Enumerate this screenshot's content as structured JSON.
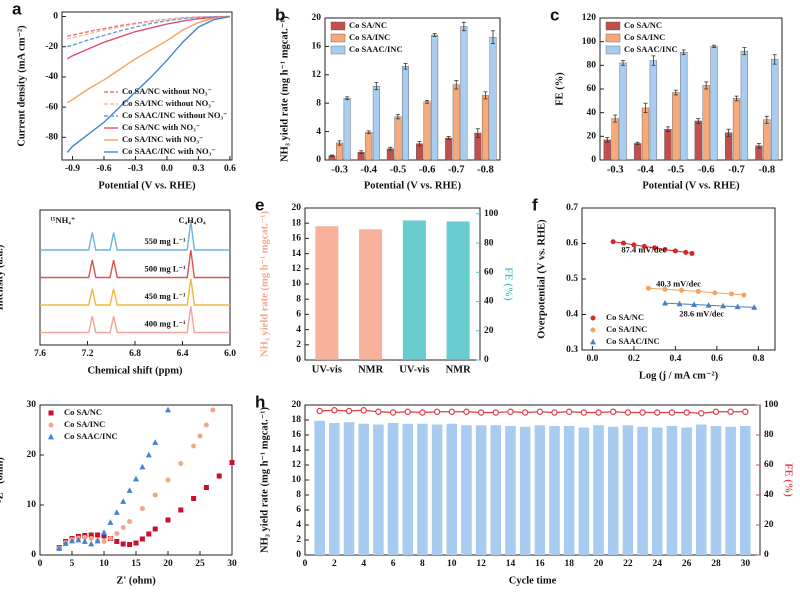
{
  "chart_data": [
    {
      "type": "line",
      "label": "a",
      "x_label": "Potential (V vs. RHE)",
      "y_label": "Current density (mA cm⁻²)",
      "xlim": [
        -1.0,
        0.62
      ],
      "xticks": [
        -0.9,
        -0.6,
        -0.3,
        {
          "value": 0,
          "label": "0.0"
        },
        0.3,
        0.6
      ],
      "ylim": [
        -95,
        3
      ],
      "yticks": [
        -80,
        -60,
        -40,
        -20,
        0
      ],
      "legend": "lower right",
      "x": [
        -0.95,
        -0.9,
        -0.75,
        -0.6,
        -0.45,
        -0.3,
        -0.15,
        0,
        0.15,
        0.3,
        0.45,
        0.6
      ],
      "series": [
        {
          "name": "Co SA/NC without NO₃⁻",
          "color": "#e8708a",
          "dash": true,
          "values": [
            -13,
            -12.3,
            -10,
            -8,
            -6,
            -4.5,
            -3,
            -1.8,
            -0.8,
            -0.3,
            -0.1,
            0
          ]
        },
        {
          "name": "Co SA/INC without NO₃⁻",
          "color": "#f5c09a",
          "dash": true,
          "values": [
            -15,
            -14,
            -11.5,
            -9,
            -7,
            -5,
            -3.4,
            -2,
            -1,
            -0.4,
            -0.1,
            0
          ]
        },
        {
          "name": "Co SAAC/INC without NO₃⁻",
          "color": "#6a9be0",
          "dash": true,
          "values": [
            -20,
            -19,
            -15.5,
            -12.5,
            -9.5,
            -7,
            -4.6,
            -2.8,
            -1.4,
            -0.6,
            -0.2,
            0
          ]
        },
        {
          "name": "Co SA/NC with NO₃⁻",
          "color": "#e0506e",
          "dash": false,
          "values": [
            -28,
            -26,
            -21.5,
            -17,
            -13.5,
            -10,
            -7.5,
            -5,
            -3,
            -1.5,
            -0.5,
            0
          ]
        },
        {
          "name": "Co SA/INC with NO₃⁻",
          "color": "#f4a460",
          "dash": false,
          "values": [
            -57,
            -55,
            -48,
            -42,
            -35,
            -28,
            -22,
            -16,
            -9,
            -4,
            -1,
            0
          ]
        },
        {
          "name": "Co SAAC/INC with NO₃⁻",
          "color": "#3f83d6",
          "dash": false,
          "values": [
            -90,
            -86,
            -78,
            -70,
            -60,
            -50,
            -40,
            -29,
            -17,
            -7,
            -2,
            0
          ]
        }
      ]
    },
    {
      "type": "bar",
      "label": "b",
      "x_label": "Potential (V vs. RHE)",
      "y_label": "NH₃ yield rate (mg h⁻¹ mgcat.⁻¹)",
      "categories": [
        "-0.3",
        "-0.4",
        "-0.5",
        "-0.6",
        "-0.7",
        "-0.8"
      ],
      "ylim": [
        0,
        20
      ],
      "yticks": [
        0,
        4,
        8,
        12,
        16,
        20
      ],
      "legend": "upper left",
      "series": [
        {
          "name": "Co SA/NC",
          "color": "#c0504d",
          "values": [
            0.6,
            1.1,
            1.6,
            2.3,
            3.1,
            3.8
          ],
          "errors": [
            0.1,
            0.2,
            0.2,
            0.3,
            0.2,
            0.6
          ]
        },
        {
          "name": "Co SA/INC",
          "color": "#f6a97a",
          "values": [
            2.4,
            3.9,
            6.1,
            8.2,
            10.6,
            9.1
          ],
          "errors": [
            0.3,
            0.2,
            0.3,
            0.2,
            0.6,
            0.5
          ]
        },
        {
          "name": "Co SAAC/INC",
          "color": "#a9cdf0",
          "values": [
            8.7,
            10.4,
            13.2,
            17.6,
            18.8,
            17.3
          ],
          "errors": [
            0.2,
            0.5,
            0.4,
            0.2,
            0.6,
            0.9
          ]
        }
      ]
    },
    {
      "type": "bar",
      "label": "c",
      "x_label": "Potential (V vs. RHE)",
      "y_label": "FE (%)",
      "categories": [
        "-0.3",
        "-0.4",
        "-0.5",
        "-0.6",
        "-0.7",
        "-0.8"
      ],
      "ylim": [
        0,
        120
      ],
      "yticks": [
        0,
        20,
        40,
        60,
        80,
        100,
        120
      ],
      "legend": "upper left",
      "series": [
        {
          "name": "Co SA/NC",
          "color": "#c0504d",
          "values": [
            17,
            14,
            26,
            33,
            23,
            12
          ],
          "errors": [
            2,
            1,
            2,
            2,
            3,
            2
          ]
        },
        {
          "name": "Co SA/INC",
          "color": "#f6a97a",
          "values": [
            35,
            44,
            57,
            63,
            52,
            34
          ],
          "errors": [
            3,
            4,
            2,
            3,
            2,
            3
          ]
        },
        {
          "name": "Co SAAC/INC",
          "color": "#a9cdf0",
          "values": [
            82,
            84,
            91,
            96,
            92,
            85
          ],
          "errors": [
            2,
            4,
            2,
            1,
            3,
            4
          ]
        }
      ]
    },
    {
      "type": "line",
      "label": "d",
      "x_label": "Chemical shift (ppm)",
      "y_label": "Intensity (a.u.)",
      "xlim": [
        7.6,
        6.0
      ],
      "xticks": [
        7.6,
        7.2,
        6.8,
        6.4,
        {
          "value": 6,
          "label": "6.0"
        }
      ],
      "ylim": [
        0,
        10.8
      ],
      "legend": "inline",
      "annotations": [
        "¹⁵NH₄⁺",
        "C₄H₄O₄"
      ],
      "x": [
        7.6,
        7.19,
        7.16,
        7.13,
        7.01,
        6.98,
        6.95,
        6.36,
        6.33,
        6.3,
        6.0
      ],
      "series": [
        {
          "name": "550 mg L⁻¹",
          "color": "#6cb4d8",
          "values": [
            7.6,
            7.6,
            9,
            7.6,
            7.6,
            9,
            7.6,
            7.6,
            9.9,
            7.6,
            7.6
          ]
        },
        {
          "name": "500 mg L⁻¹",
          "color": "#d9534f",
          "values": [
            5.4,
            5.4,
            6.8,
            5.4,
            5.4,
            6.8,
            5.4,
            5.4,
            7.6,
            5.4,
            5.4
          ]
        },
        {
          "name": "450 mg L⁻¹",
          "color": "#f0b840",
          "values": [
            3.2,
            3.2,
            4.5,
            3.2,
            3.2,
            4.5,
            3.2,
            3.2,
            5.3,
            3.2,
            3.2
          ]
        },
        {
          "name": "400 mg L⁻¹",
          "color": "#f2a49a",
          "values": [
            1,
            1,
            2.3,
            1,
            1,
            2.3,
            1,
            1,
            3.1,
            1,
            1
          ]
        }
      ]
    },
    {
      "type": "bar",
      "label": "e",
      "y_label": "NH₃ yield rate (mg h⁻¹ mgcat.⁻¹)",
      "y2_label": "FE (%)",
      "categories": [
        "UV-vis",
        "NMR",
        "UV-vis",
        "NMR"
      ],
      "ylim": [
        0,
        20
      ],
      "yticks": [
        0,
        2,
        4,
        6,
        8,
        10,
        12,
        14,
        16,
        18,
        20
      ],
      "y2lim": [
        0,
        104
      ],
      "y2ticks": [
        0,
        20,
        40,
        60,
        80,
        100
      ],
      "series": [
        {
          "color": "#f7a58a",
          "values": [
            17.6,
            17.2,
            null,
            null
          ]
        },
        {
          "color": "#4fc4c8",
          "axis": "y2",
          "values": [
            null,
            null,
            95.5,
            94.8
          ]
        }
      ]
    },
    {
      "type": "scatter",
      "label": "f",
      "x_label": "Log (j / mA cm⁻²)",
      "y_label": "Overpotential (V vs. RHE)",
      "xlim": [
        -0.05,
        0.88
      ],
      "xticks": [
        {
          "value": 0,
          "label": "0.0"
        },
        0.2,
        0.4,
        0.6,
        0.8
      ],
      "ylim": [
        0.3,
        0.7
      ],
      "yticks": [
        0.3,
        0.4,
        0.5,
        0.6,
        0.7
      ],
      "legend": "lower left",
      "fit": true,
      "annotations": [
        "87.4 mV/dec",
        "40.3 mV/dec",
        "28.6 mV/dec"
      ],
      "series": [
        {
          "name": "Co SA/NC",
          "color": "#d62728",
          "marker": "circle",
          "x": [
            0.1,
            0.15,
            0.2,
            0.25,
            0.3,
            0.35,
            0.4,
            0.45,
            0.48
          ],
          "values": [
            0.605,
            0.601,
            0.596,
            0.592,
            0.588,
            0.583,
            0.579,
            0.575,
            0.572
          ]
        },
        {
          "name": "Co SA/INC",
          "color": "#f4a460",
          "marker": "circle",
          "x": [
            0.27,
            0.35,
            0.43,
            0.51,
            0.59,
            0.67,
            0.73
          ],
          "values": [
            0.474,
            0.471,
            0.468,
            0.465,
            0.461,
            0.458,
            0.455
          ]
        },
        {
          "name": "Co SAAC/INC",
          "color": "#4a7fc1",
          "marker": "triangle",
          "x": [
            0.35,
            0.42,
            0.49,
            0.56,
            0.63,
            0.7,
            0.78
          ],
          "values": [
            0.432,
            0.43,
            0.428,
            0.426,
            0.424,
            0.422,
            0.42
          ]
        }
      ]
    },
    {
      "type": "scatter",
      "label": "g",
      "x_label": "Z' (ohm)",
      "y_label": "-Z'' (ohm)",
      "xlim": [
        0,
        30
      ],
      "xticks": [
        0,
        5,
        10,
        15,
        20,
        25,
        30
      ],
      "ylim": [
        0,
        30
      ],
      "yticks": [
        0,
        10,
        20,
        30
      ],
      "legend": "upper left",
      "series": [
        {
          "name": "Co SA/NC",
          "color": "#c8102e",
          "marker": "square",
          "x": [
            3,
            4,
            5,
            6,
            7,
            8,
            9,
            10,
            11,
            12,
            13,
            14,
            15,
            16,
            17,
            18,
            20,
            22,
            24,
            26,
            28,
            30
          ],
          "values": [
            1.5,
            2.7,
            3.3,
            3.7,
            3.9,
            4,
            4,
            3.8,
            3.3,
            2.7,
            2.2,
            2.1,
            2.4,
            3.2,
            4.2,
            5.2,
            7,
            9,
            11.3,
            13.5,
            15.8,
            18.5
          ]
        },
        {
          "name": "Co SA/INC",
          "color": "#f4a582",
          "marker": "circle",
          "x": [
            3,
            4,
            5,
            6,
            7,
            8,
            9,
            10,
            11,
            12,
            13,
            14,
            16,
            18,
            20,
            22,
            24,
            25,
            26,
            27
          ],
          "values": [
            1.4,
            2.5,
            3.1,
            3.4,
            3.5,
            3.3,
            2.9,
            2.7,
            3.3,
            4.3,
            5.5,
            6.7,
            9.3,
            12,
            15,
            18.3,
            21.8,
            23.8,
            26,
            29
          ]
        },
        {
          "name": "Co SAAC/INC",
          "color": "#3f83d6",
          "marker": "triangle",
          "x": [
            3,
            4,
            5,
            6,
            7,
            8,
            9,
            10,
            11,
            12,
            13,
            14,
            15,
            16,
            17,
            18,
            20
          ],
          "values": [
            1.3,
            2.3,
            2.8,
            3,
            2.7,
            2.2,
            2.8,
            4.5,
            6.5,
            8.5,
            10.7,
            12.9,
            15.2,
            17.6,
            20,
            22.5,
            29
          ]
        }
      ]
    },
    {
      "type": "combo",
      "label": "h",
      "x_label": "Cycle time",
      "y_label": "NH₃ yield rate (mg h⁻¹ mgcat.⁻¹)",
      "y2_label": "FE (%)",
      "xlim": [
        0,
        31
      ],
      "xticks": [
        0,
        2,
        4,
        6,
        8,
        10,
        12,
        14,
        16,
        18,
        20,
        22,
        24,
        26,
        28,
        30
      ],
      "ylim": [
        0,
        20
      ],
      "yticks": [
        0,
        2,
        4,
        6,
        8,
        10,
        12,
        14,
        16,
        18,
        20
      ],
      "y2lim": [
        0,
        100
      ],
      "y2ticks": [
        0,
        20,
        40,
        60,
        80,
        100
      ],
      "x": [
        1,
        2,
        3,
        4,
        5,
        6,
        7,
        8,
        9,
        10,
        11,
        12,
        13,
        14,
        15,
        16,
        17,
        18,
        19,
        20,
        21,
        22,
        23,
        24,
        25,
        26,
        27,
        28,
        29,
        30
      ],
      "series": [
        {
          "color": "#a8ccf0",
          "values": [
            17.9,
            17.6,
            17.7,
            17.5,
            17.4,
            17.6,
            17.5,
            17.5,
            17.4,
            17.5,
            17.3,
            17.3,
            17.3,
            17.2,
            17.1,
            17.3,
            17.2,
            17.2,
            17,
            17.3,
            17.1,
            17.3,
            17.1,
            17,
            17.2,
            17,
            17.4,
            17.2,
            17.1,
            17.2
          ]
        },
        {
          "color": "#e03c4a",
          "axis": "y2",
          "values": [
            96,
            96.5,
            96,
            96.5,
            95.5,
            95,
            95.5,
            95,
            95.5,
            95.5,
            95.5,
            95,
            95,
            95.5,
            95,
            95.5,
            95,
            95.5,
            95,
            95,
            95.5,
            95,
            95,
            95,
            95,
            95,
            94.5,
            95.5,
            95.5,
            95.5
          ]
        }
      ]
    }
  ]
}
